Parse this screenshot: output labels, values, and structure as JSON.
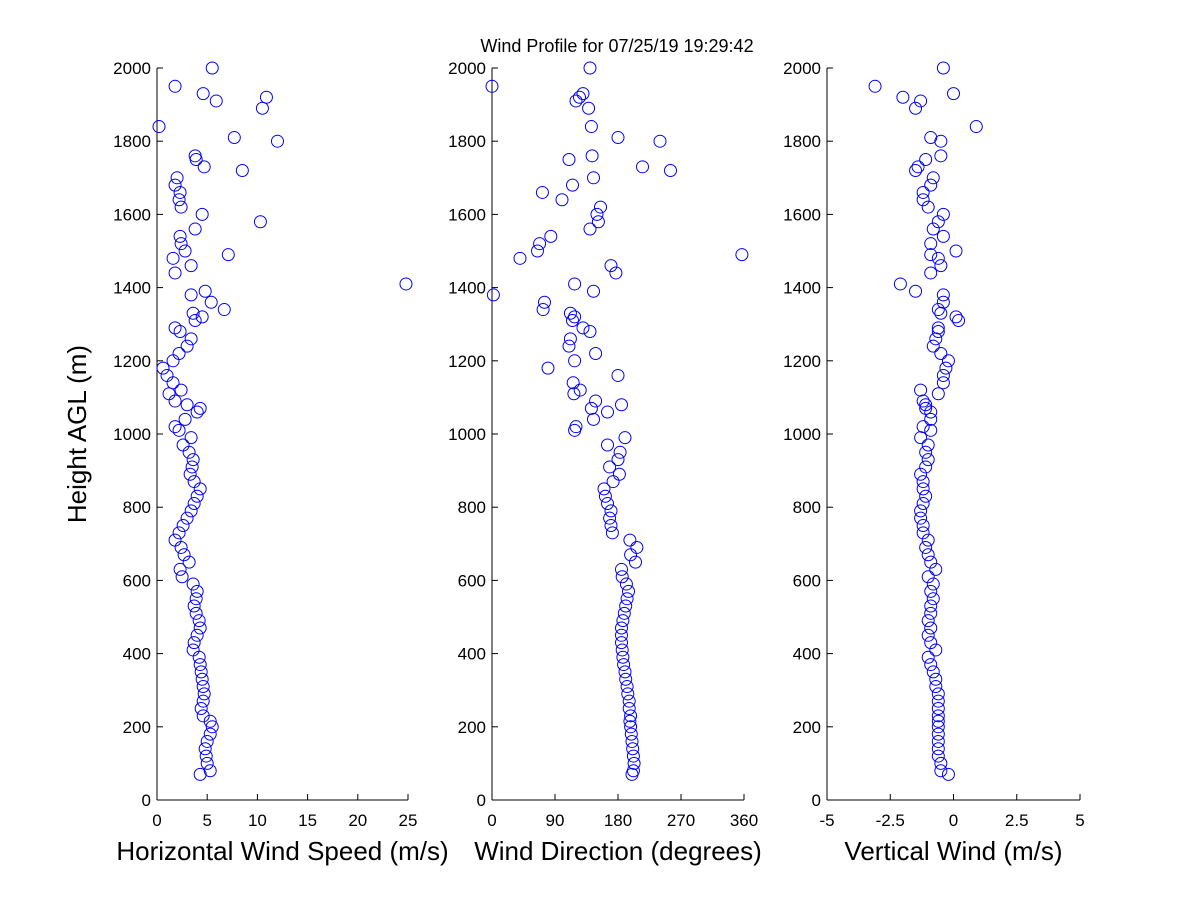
{
  "title": "Wind Profile for  07/25/19 19:29:42",
  "chart_data": [
    {
      "type": "scatter",
      "color": "#0000ff",
      "ylabel": "Height AGL (m)",
      "xlabel": "Horizontal Wind Speed (m/s)",
      "xlim": [
        0,
        25
      ],
      "xticks": [
        0,
        5,
        10,
        15,
        20,
        25
      ],
      "ylim": [
        0,
        2000
      ],
      "yticks": [
        0,
        200,
        400,
        600,
        800,
        1000,
        1200,
        1400,
        1600,
        1800,
        2000
      ],
      "x": [
        4.3,
        5.3,
        5.0,
        4.9,
        4.8,
        5.0,
        5.3,
        5.5,
        5.3,
        4.6,
        4.4,
        4.6,
        4.7,
        4.6,
        4.5,
        4.4,
        4.3,
        4.2,
        3.6,
        3.7,
        4.0,
        4.3,
        4.2,
        3.9,
        3.7,
        3.9,
        4.0,
        3.6,
        2.5,
        2.3,
        3.2,
        2.7,
        2.4,
        1.8,
        2.2,
        2.6,
        3.0,
        3.4,
        3.7,
        4.0,
        4.3,
        3.7,
        3.3,
        3.5,
        3.6,
        3.2,
        2.6,
        3.4,
        2.2,
        1.8,
        2.8,
        4.0,
        4.3,
        3.0,
        1.8,
        1.2,
        2.4,
        1.6,
        1.0,
        0.6,
        1.6,
        2.2,
        3.0,
        3.4,
        2.3,
        1.8,
        3.8,
        4.5,
        3.6,
        6.7,
        5.4,
        3.4,
        4.8,
        24.8,
        1.8,
        3.4,
        1.6,
        7.1,
        2.8,
        2.4,
        2.3,
        3.8,
        10.3,
        4.5,
        2.4,
        2.2,
        2.3,
        1.8,
        2.0,
        8.5,
        4.7,
        3.9,
        3.8,
        12.0,
        7.7,
        0.2,
        10.5,
        5.9,
        10.9,
        4.6,
        1.8,
        5.5
      ],
      "y": [
        70,
        80,
        100,
        120,
        140,
        160,
        180,
        200,
        215,
        230,
        250,
        270,
        290,
        310,
        330,
        350,
        370,
        390,
        410,
        430,
        450,
        470,
        490,
        510,
        530,
        550,
        570,
        590,
        610,
        630,
        650,
        670,
        690,
        710,
        730,
        750,
        770,
        790,
        810,
        830,
        850,
        870,
        890,
        910,
        930,
        950,
        970,
        990,
        1010,
        1020,
        1040,
        1060,
        1070,
        1080,
        1090,
        1110,
        1120,
        1140,
        1160,
        1180,
        1200,
        1220,
        1240,
        1260,
        1280,
        1290,
        1310,
        1320,
        1330,
        1340,
        1360,
        1380,
        1390,
        1410,
        1440,
        1460,
        1480,
        1490,
        1500,
        1520,
        1540,
        1560,
        1580,
        1600,
        1620,
        1640,
        1660,
        1680,
        1700,
        1720,
        1730,
        1750,
        1760,
        1800,
        1810,
        1840,
        1890,
        1910,
        1920,
        1930,
        1950,
        2000
      ]
    },
    {
      "type": "scatter",
      "color": "#0000ff",
      "xlabel": "Wind Direction (degrees)",
      "xlim": [
        0,
        360
      ],
      "xticks": [
        0,
        90,
        180,
        270,
        360
      ],
      "ylim": [
        0,
        2000
      ],
      "yticks": [
        0,
        200,
        400,
        600,
        800,
        1000,
        1200,
        1400,
        1600,
        1800,
        2000
      ],
      "x": [
        200,
        202,
        203,
        202,
        201,
        200,
        199,
        198,
        197,
        198,
        196,
        196,
        194,
        193,
        191,
        190,
        188,
        187,
        186,
        185,
        185,
        185,
        187,
        189,
        191,
        193,
        195,
        192,
        186,
        185,
        205,
        198,
        207,
        197,
        172,
        170,
        168,
        170,
        165,
        162,
        160,
        173,
        182,
        168,
        180,
        183,
        165,
        190,
        118,
        120,
        145,
        165,
        142,
        185,
        148,
        117,
        126,
        116,
        180,
        80,
        118,
        148,
        110,
        112,
        140,
        130,
        115,
        118,
        112,
        73,
        75,
        2,
        145,
        118,
        177,
        170,
        40,
        357,
        65,
        68,
        84,
        140,
        152,
        150,
        155,
        100,
        72,
        115,
        145,
        255,
        215,
        110,
        143,
        240,
        180,
        142,
        138,
        120,
        125,
        130,
        0,
        140
      ],
      "y": [
        70,
        80,
        100,
        120,
        140,
        160,
        180,
        200,
        215,
        230,
        250,
        270,
        290,
        310,
        330,
        350,
        370,
        390,
        410,
        430,
        450,
        470,
        490,
        510,
        530,
        550,
        570,
        590,
        610,
        630,
        650,
        670,
        690,
        710,
        730,
        750,
        770,
        790,
        810,
        830,
        850,
        870,
        890,
        910,
        930,
        950,
        970,
        990,
        1010,
        1020,
        1040,
        1060,
        1070,
        1080,
        1090,
        1110,
        1120,
        1140,
        1160,
        1180,
        1200,
        1220,
        1240,
        1260,
        1280,
        1290,
        1310,
        1320,
        1330,
        1340,
        1360,
        1380,
        1390,
        1410,
        1440,
        1460,
        1480,
        1490,
        1500,
        1520,
        1540,
        1560,
        1580,
        1600,
        1620,
        1640,
        1660,
        1680,
        1700,
        1720,
        1730,
        1750,
        1760,
        1800,
        1810,
        1840,
        1890,
        1910,
        1920,
        1930,
        1950,
        2000
      ]
    },
    {
      "type": "scatter",
      "color": "#0000ff",
      "xlabel": "Vertical Wind (m/s)",
      "xlim": [
        -5,
        5
      ],
      "xticks": [
        -5,
        -2.5,
        0,
        2.5,
        5
      ],
      "ylim": [
        0,
        2000
      ],
      "yticks": [
        0,
        200,
        400,
        600,
        800,
        1000,
        1200,
        1400,
        1600,
        1800,
        2000
      ],
      "x": [
        -0.2,
        -0.5,
        -0.5,
        -0.6,
        -0.6,
        -0.6,
        -0.6,
        -0.6,
        -0.6,
        -0.6,
        -0.6,
        -0.6,
        -0.6,
        -0.7,
        -0.7,
        -0.8,
        -0.9,
        -1.0,
        -0.7,
        -0.9,
        -1.0,
        -0.9,
        -1.0,
        -0.9,
        -0.9,
        -0.8,
        -0.9,
        -0.8,
        -1.0,
        -0.7,
        -0.9,
        -1.0,
        -1.1,
        -1.0,
        -1.2,
        -1.2,
        -1.3,
        -1.3,
        -1.2,
        -1.1,
        -1.2,
        -1.2,
        -1.3,
        -1.1,
        -1.0,
        -1.1,
        -1.0,
        -1.3,
        -0.9,
        -1.2,
        -0.9,
        -0.9,
        -1.1,
        -1.1,
        -1.2,
        -0.6,
        -1.3,
        -0.4,
        -0.4,
        -0.3,
        -0.2,
        -0.5,
        -0.8,
        -0.7,
        -0.6,
        -0.6,
        0.2,
        0.1,
        -0.5,
        -0.6,
        -0.4,
        -0.4,
        -1.5,
        -2.1,
        -0.9,
        -0.5,
        -0.6,
        -0.9,
        0.1,
        -0.9,
        -0.4,
        -0.8,
        -0.6,
        -0.4,
        -1.0,
        -1.2,
        -1.2,
        -0.9,
        -0.8,
        -1.5,
        -1.4,
        -1.1,
        -0.5,
        -0.5,
        -0.9,
        0.9,
        -1.5,
        -1.3,
        -2.0,
        0.0,
        -3.1,
        -0.4
      ],
      "y": [
        70,
        80,
        100,
        120,
        140,
        160,
        180,
        200,
        215,
        230,
        250,
        270,
        290,
        310,
        330,
        350,
        370,
        390,
        410,
        430,
        450,
        470,
        490,
        510,
        530,
        550,
        570,
        590,
        610,
        630,
        650,
        670,
        690,
        710,
        730,
        750,
        770,
        790,
        810,
        830,
        850,
        870,
        890,
        910,
        930,
        950,
        970,
        990,
        1010,
        1020,
        1040,
        1060,
        1070,
        1080,
        1090,
        1110,
        1120,
        1140,
        1160,
        1180,
        1200,
        1220,
        1240,
        1260,
        1280,
        1290,
        1310,
        1320,
        1330,
        1340,
        1360,
        1380,
        1390,
        1410,
        1440,
        1460,
        1480,
        1490,
        1500,
        1520,
        1540,
        1560,
        1580,
        1600,
        1620,
        1640,
        1660,
        1680,
        1700,
        1720,
        1730,
        1750,
        1760,
        1800,
        1810,
        1840,
        1890,
        1910,
        1920,
        1930,
        1950,
        2000
      ]
    }
  ]
}
